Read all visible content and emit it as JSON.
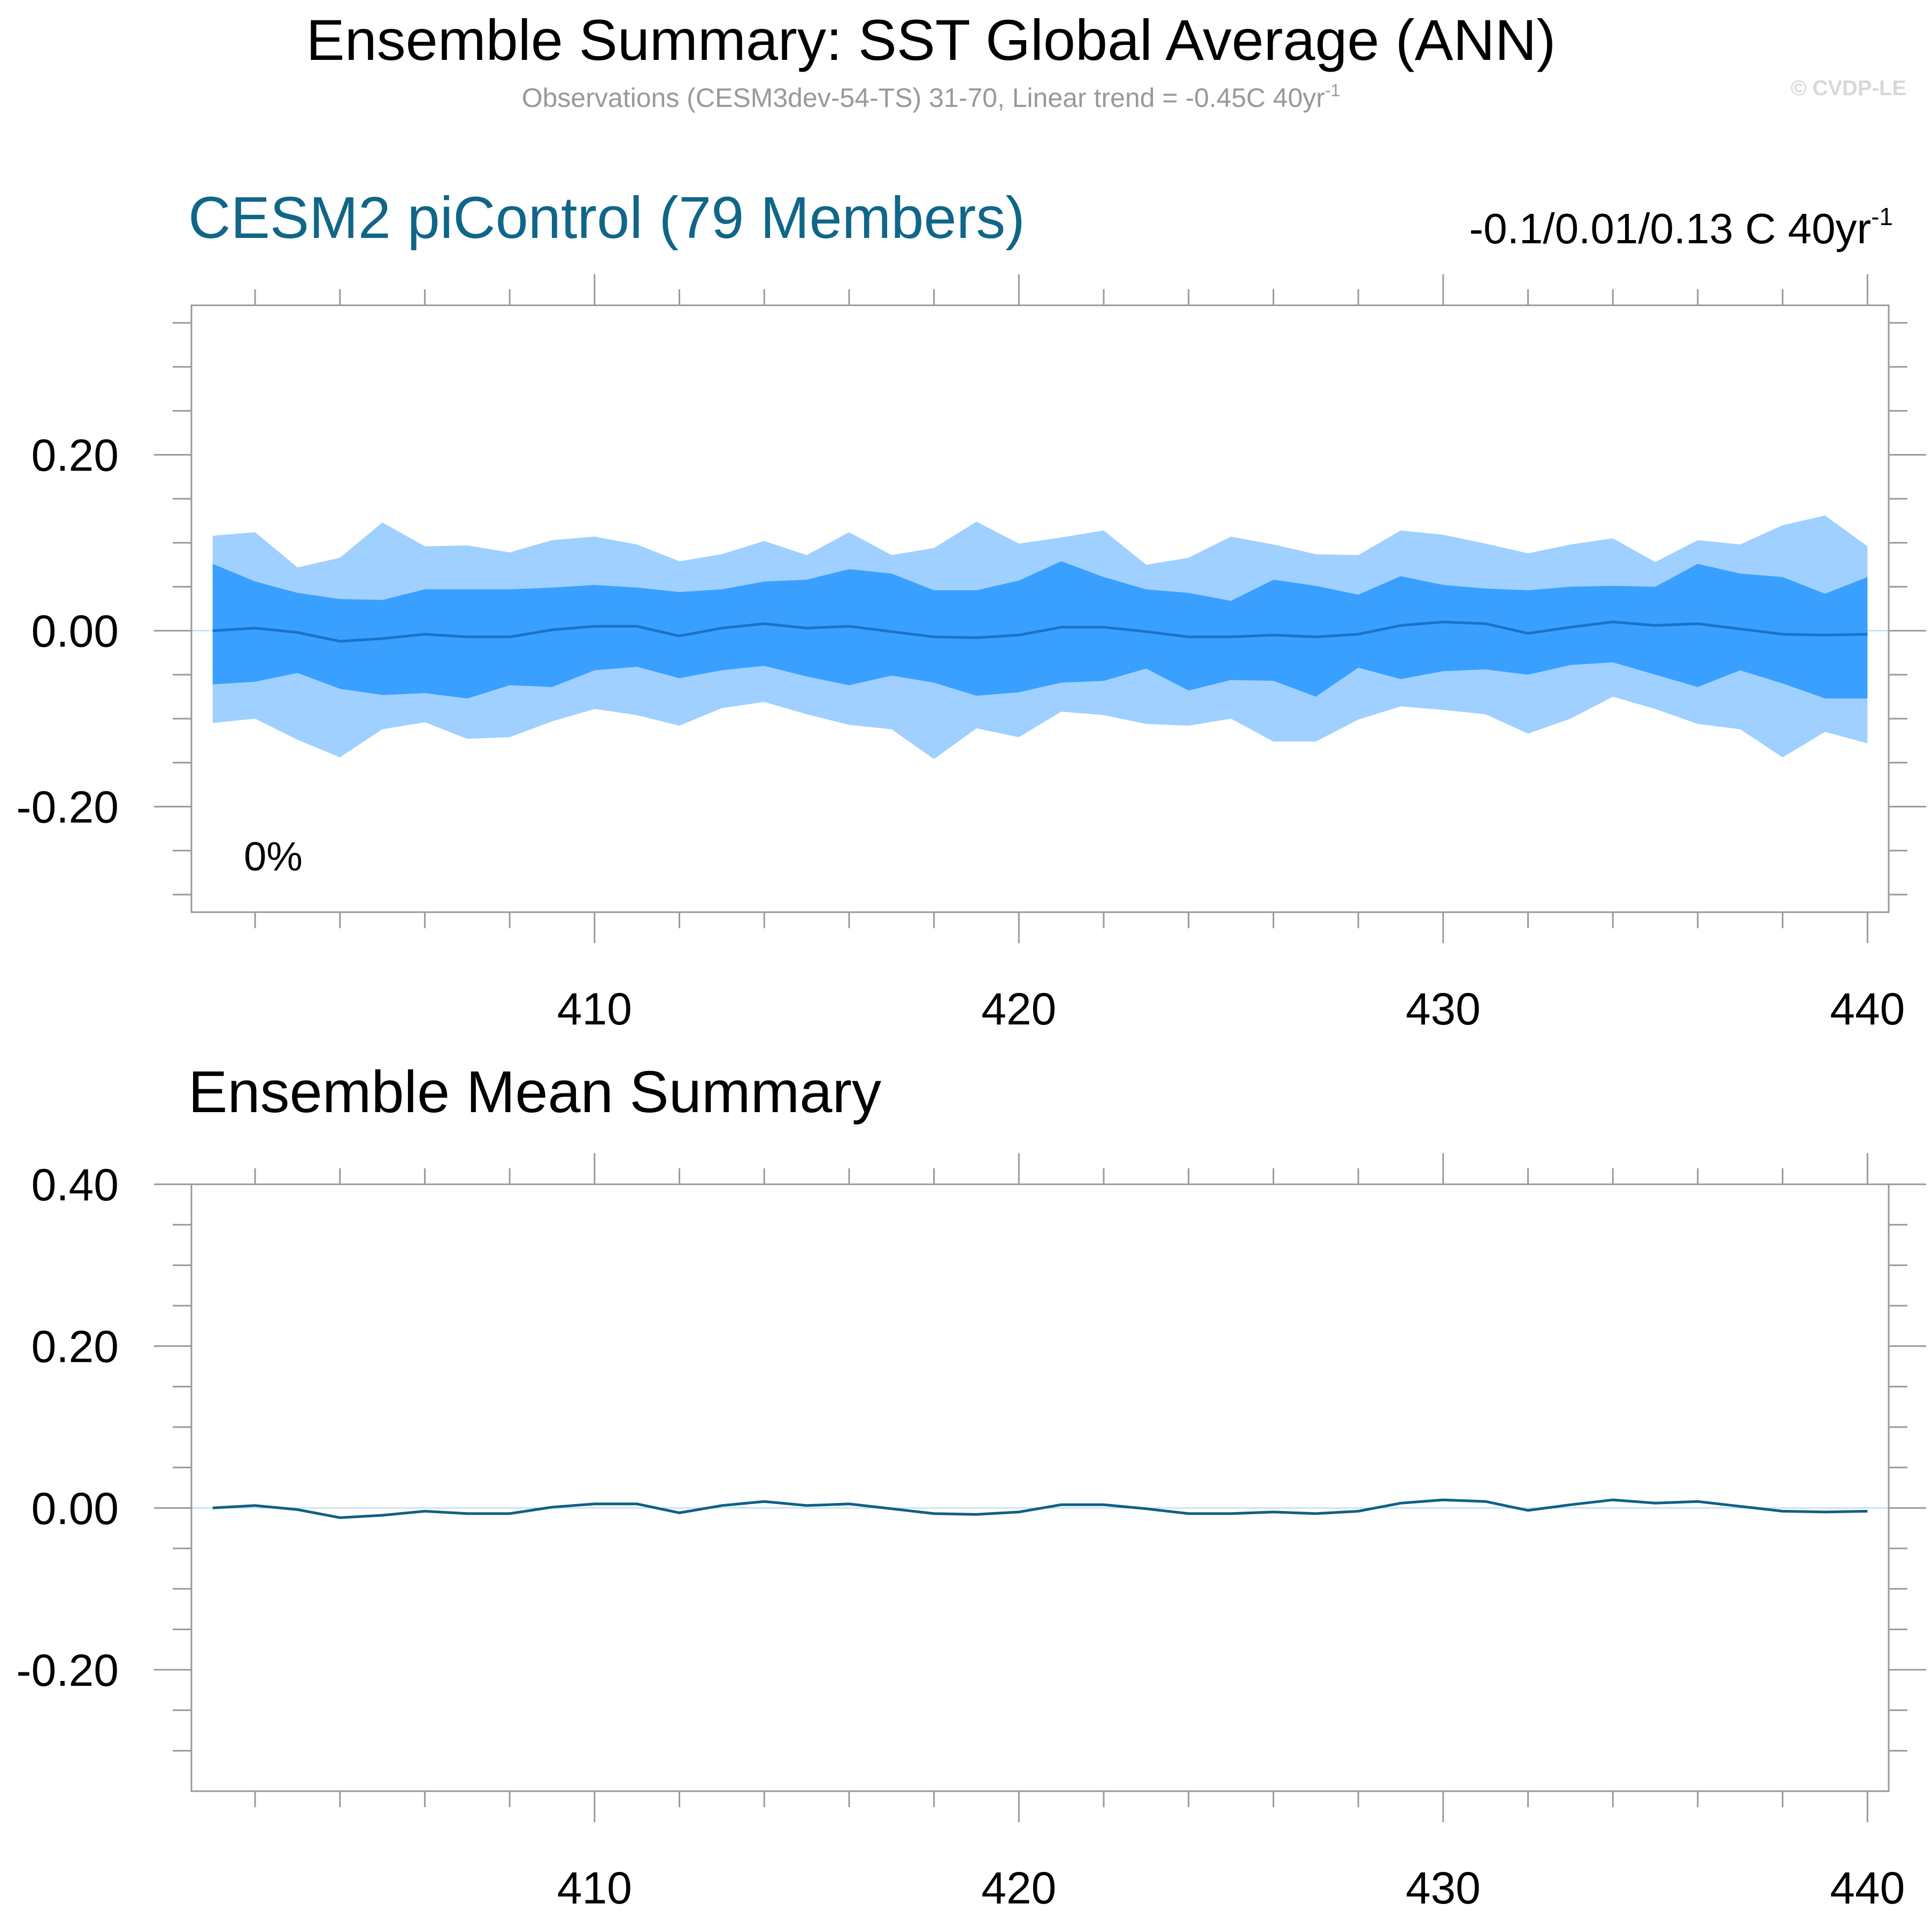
{
  "title": "Ensemble Summary: SST Global Average (ANN)",
  "subtitle": {
    "text": "Observations (CESM3dev-54-TS) 31-70, Linear trend = -0.45C 40yr",
    "superscript": "-1"
  },
  "copyright": "© CVDP-LE",
  "colors": {
    "outer_band": "#9fd0ff",
    "inner_band": "#3aa0ff",
    "top_mean_line": "#1a73c9",
    "bottom_mean_line": "#0f6085",
    "blue_title": "#106688",
    "frame": "#9a9a9a",
    "zero_line": "#b5d8ee"
  },
  "chart_data": [
    {
      "type": "area",
      "title": "CESM2 piControl (79 Members)",
      "annotation_right": {
        "text": "-0.1/0.01/0.13 C 40yr",
        "superscript": "-1"
      },
      "annotation_left": "0%",
      "xlabel": "",
      "ylabel": "",
      "xlim": [
        400.5,
        440.5
      ],
      "ylim": [
        -0.32,
        0.37
      ],
      "x_ticks": [
        410,
        420,
        430,
        440
      ],
      "x_tick_labels": [
        "410",
        "420",
        "430",
        "440"
      ],
      "y_ticks": [
        -0.2,
        0.0,
        0.2
      ],
      "y_tick_labels": [
        "-0.20",
        "0.00",
        "0.20"
      ],
      "x": [
        401,
        402,
        403,
        404,
        405,
        406,
        407,
        408,
        409,
        410,
        411,
        412,
        413,
        414,
        415,
        416,
        417,
        418,
        419,
        420,
        421,
        422,
        423,
        424,
        425,
        426,
        427,
        428,
        429,
        430,
        431,
        432,
        433,
        434,
        435,
        436,
        437,
        438,
        439,
        440
      ],
      "series": [
        {
          "role": "band_outer_upper",
          "values": [
            0.108,
            0.112,
            0.072,
            0.083,
            0.123,
            0.096,
            0.097,
            0.089,
            0.103,
            0.107,
            0.098,
            0.079,
            0.087,
            0.102,
            0.086,
            0.112,
            0.086,
            0.094,
            0.124,
            0.099,
            0.106,
            0.114,
            0.075,
            0.083,
            0.107,
            0.098,
            0.087,
            0.086,
            0.114,
            0.109,
            0.099,
            0.088,
            0.098,
            0.105,
            0.078,
            0.103,
            0.098,
            0.12,
            0.131,
            0.096
          ]
        },
        {
          "role": "band_outer_lower",
          "values": [
            -0.105,
            -0.1,
            -0.124,
            -0.144,
            -0.112,
            -0.104,
            -0.123,
            -0.121,
            -0.103,
            -0.089,
            -0.096,
            -0.108,
            -0.088,
            -0.081,
            -0.095,
            -0.107,
            -0.112,
            -0.146,
            -0.111,
            -0.121,
            -0.092,
            -0.096,
            -0.106,
            -0.108,
            -0.1,
            -0.126,
            -0.126,
            -0.101,
            -0.086,
            -0.09,
            -0.095,
            -0.117,
            -0.1,
            -0.075,
            -0.089,
            -0.106,
            -0.112,
            -0.144,
            -0.115,
            -0.128
          ]
        },
        {
          "role": "band_inner_upper",
          "values": [
            0.076,
            0.056,
            0.043,
            0.036,
            0.035,
            0.047,
            0.047,
            0.047,
            0.049,
            0.052,
            0.049,
            0.044,
            0.047,
            0.056,
            0.058,
            0.07,
            0.065,
            0.046,
            0.046,
            0.057,
            0.079,
            0.061,
            0.047,
            0.043,
            0.034,
            0.058,
            0.051,
            0.041,
            0.062,
            0.052,
            0.048,
            0.046,
            0.05,
            0.051,
            0.05,
            0.076,
            0.065,
            0.061,
            0.042,
            0.061
          ]
        },
        {
          "role": "band_inner_lower",
          "values": [
            -0.061,
            -0.058,
            -0.048,
            -0.066,
            -0.073,
            -0.071,
            -0.077,
            -0.062,
            -0.064,
            -0.045,
            -0.041,
            -0.054,
            -0.045,
            -0.04,
            -0.052,
            -0.062,
            -0.051,
            -0.059,
            -0.074,
            -0.07,
            -0.059,
            -0.057,
            -0.043,
            -0.068,
            -0.056,
            -0.057,
            -0.075,
            -0.042,
            -0.055,
            -0.046,
            -0.044,
            -0.05,
            -0.039,
            -0.036,
            -0.05,
            -0.064,
            -0.045,
            -0.06,
            -0.077,
            -0.077
          ]
        },
        {
          "role": "ensemble_mean",
          "values": [
            0.0,
            0.003,
            -0.002,
            -0.012,
            -0.009,
            -0.004,
            -0.007,
            -0.007,
            0.001,
            0.005,
            0.005,
            -0.006,
            0.003,
            0.008,
            0.003,
            0.005,
            -0.001,
            -0.007,
            -0.008,
            -0.005,
            0.004,
            0.004,
            -0.001,
            -0.007,
            -0.007,
            -0.005,
            -0.007,
            -0.004,
            0.006,
            0.01,
            0.008,
            -0.003,
            0.004,
            0.01,
            0.006,
            0.008,
            0.002,
            -0.004,
            -0.005,
            -0.004
          ]
        }
      ]
    },
    {
      "type": "line",
      "title": "Ensemble Mean Summary",
      "xlabel": "",
      "ylabel": "",
      "xlim": [
        400.5,
        440.5
      ],
      "ylim": [
        -0.35,
        0.4
      ],
      "x_ticks": [
        410,
        420,
        430,
        440
      ],
      "x_tick_labels": [
        "410",
        "420",
        "430",
        "440"
      ],
      "y_ticks": [
        -0.2,
        0.0,
        0.2,
        0.4
      ],
      "y_tick_labels": [
        "-0.20",
        "0.00",
        "0.20",
        "0.40"
      ],
      "x": [
        401,
        402,
        403,
        404,
        405,
        406,
        407,
        408,
        409,
        410,
        411,
        412,
        413,
        414,
        415,
        416,
        417,
        418,
        419,
        420,
        421,
        422,
        423,
        424,
        425,
        426,
        427,
        428,
        429,
        430,
        431,
        432,
        433,
        434,
        435,
        436,
        437,
        438,
        439,
        440
      ],
      "series": [
        {
          "values": [
            0.0,
            0.003,
            -0.002,
            -0.012,
            -0.009,
            -0.004,
            -0.007,
            -0.007,
            0.001,
            0.005,
            0.005,
            -0.006,
            0.003,
            0.008,
            0.003,
            0.005,
            -0.001,
            -0.007,
            -0.008,
            -0.005,
            0.004,
            0.004,
            -0.001,
            -0.007,
            -0.007,
            -0.005,
            -0.007,
            -0.004,
            0.006,
            0.01,
            0.008,
            -0.003,
            0.004,
            0.01,
            0.006,
            0.008,
            0.002,
            -0.004,
            -0.005,
            -0.004
          ]
        }
      ]
    }
  ]
}
